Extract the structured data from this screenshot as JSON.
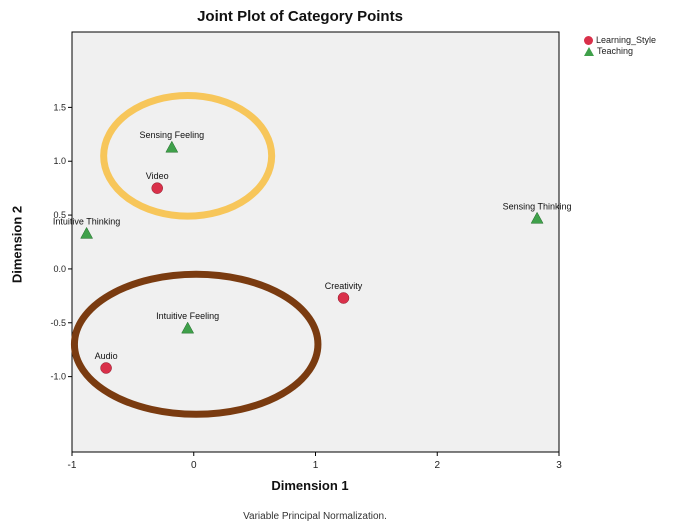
{
  "chart_data": {
    "type": "scatter",
    "title": "Joint Plot of Category Points",
    "xlabel": "Dimension 1",
    "ylabel": "Dimension 2",
    "footnote": "Variable Principal Normalization.",
    "xlim": [
      -1,
      3
    ],
    "ylim": [
      -1.7,
      2.2
    ],
    "x_ticks": [
      -1,
      0,
      1,
      2,
      3
    ],
    "y_ticks": [
      1.5,
      1.0,
      0.5,
      0.0,
      -0.5,
      -1.0
    ],
    "y_tick_labels": [
      "1.5",
      "1.0",
      "0.5",
      "0.0",
      "-0.5",
      "-1.0"
    ],
    "grid": false,
    "legend_position": "top-right",
    "series": [
      {
        "name": "Learning_Style",
        "color": "#d9304a",
        "marker": "circle",
        "points": [
          {
            "label": "Video",
            "x": -0.3,
            "y": 0.75
          },
          {
            "label": "Creativity",
            "x": 1.23,
            "y": -0.27
          },
          {
            "label": "Audio",
            "x": -0.72,
            "y": -0.92
          }
        ]
      },
      {
        "name": "Teaching",
        "color": "#3fa04a",
        "marker": "triangle",
        "points": [
          {
            "label": "Sensing Feeling",
            "x": -0.18,
            "y": 1.13
          },
          {
            "label": "Intuitive Thinking",
            "x": -0.88,
            "y": 0.33
          },
          {
            "label": "Sensing Thinking",
            "x": 2.82,
            "y": 0.47
          },
          {
            "label": "Intuitive Feeling",
            "x": -0.05,
            "y": -0.55
          }
        ]
      }
    ],
    "annotations": [
      {
        "shape": "ellipse",
        "color": "#f7c65a",
        "cx": -0.05,
        "cy": 1.05,
        "rx": 0.69,
        "ry": 0.56
      },
      {
        "shape": "ellipse",
        "color": "#7a3b10",
        "cx": 0.02,
        "cy": -0.7,
        "rx": 1.0,
        "ry": 0.65
      }
    ]
  }
}
